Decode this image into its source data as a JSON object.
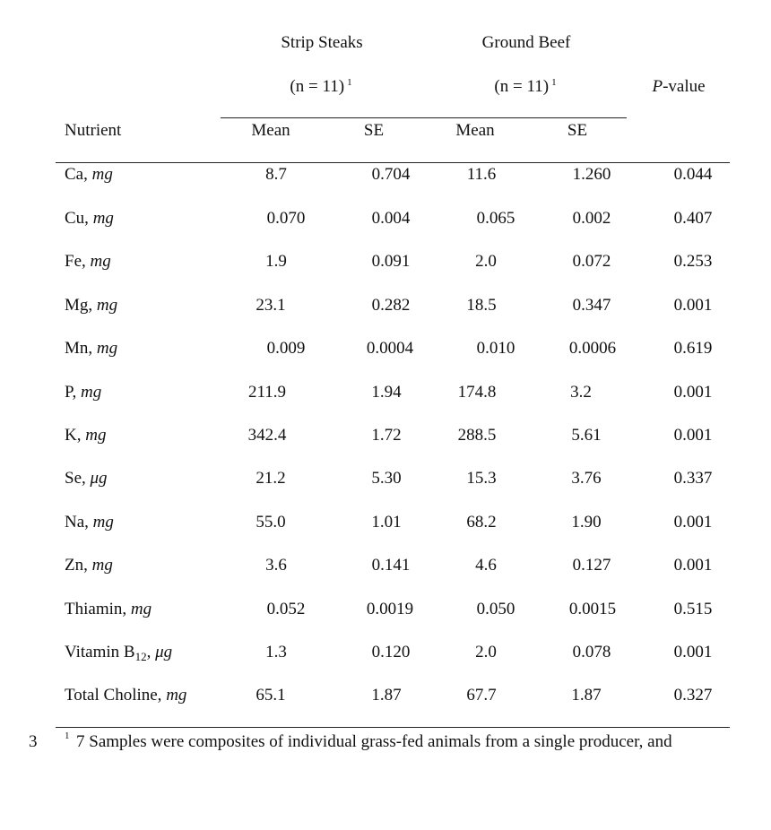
{
  "header": {
    "group1_title": "Strip Steaks",
    "group1_n": "(n = 11)",
    "group1_n_mark": "1",
    "group2_title": "Ground Beef",
    "group2_n": "(n = 11)",
    "group2_n_mark": "1",
    "pvalue_italic": "P",
    "pvalue_rest": "-value",
    "nutrient": "Nutrient",
    "mean1": "Mean",
    "se1": "SE",
    "mean2": "Mean",
    "se2": "SE"
  },
  "rows": [
    {
      "name": "Ca, ",
      "unit": "mg",
      "mean1": "8.7",
      "se1": "0.704",
      "mean2": "11.6",
      "se2": "1.260",
      "p": "0.044"
    },
    {
      "name": "Cu, ",
      "unit": "mg",
      "mean1": "0.070",
      "se1": "0.004",
      "mean2": "0.065",
      "se2": "0.002",
      "p": "0.407"
    },
    {
      "name": "Fe, ",
      "unit": "mg",
      "mean1": "1.9",
      "se1": "0.091",
      "mean2": "2.0",
      "se2": "0.072",
      "p": "0.253"
    },
    {
      "name": "Mg, ",
      "unit": "mg",
      "mean1": "23.1",
      "se1": "0.282",
      "mean2": "18.5",
      "se2": "0.347",
      "p": "0.001"
    },
    {
      "name": "Mn, ",
      "unit": "mg",
      "mean1": "0.009",
      "se1": "0.0004",
      "mean2": "0.010",
      "se2": "0.0006",
      "p": "0.619"
    },
    {
      "name": "P, ",
      "unit": "mg",
      "mean1": "211.9",
      "se1": "1.94",
      "mean2": "174.8",
      "se2": "3.2",
      "p": "0.001"
    },
    {
      "name": "K, ",
      "unit": "mg",
      "mean1": "342.4",
      "se1": "1.72",
      "mean2": "288.5",
      "se2": "5.61",
      "p": "0.001"
    },
    {
      "name": "Se, ",
      "unit": "μg",
      "mean1": "21.2",
      "se1": "5.30",
      "mean2": "15.3",
      "se2": "3.76",
      "p": "0.337"
    },
    {
      "name": "Na, ",
      "unit": "mg",
      "mean1": "55.0",
      "se1": "1.01",
      "mean2": "68.2",
      "se2": "1.90",
      "p": "0.001"
    },
    {
      "name": "Zn, ",
      "unit": "mg",
      "mean1": "3.6",
      "se1": "0.141",
      "mean2": "4.6",
      "se2": "0.127",
      "p": "0.001"
    },
    {
      "name": "Thiamin, ",
      "unit": "mg",
      "mean1": "0.052",
      "se1": "0.0019",
      "mean2": "0.050",
      "se2": "0.0015",
      "p": "0.515"
    },
    {
      "name": "Vitamin B",
      "sub": "12",
      "comma": ", ",
      "unit": "μg",
      "mean1": "1.3",
      "se1": "0.120",
      "mean2": "2.0",
      "se2": "0.078",
      "p": "0.001"
    },
    {
      "name": "Total Choline, ",
      "unit": "mg",
      "mean1": "65.1",
      "se1": "1.87",
      "mean2": "67.7",
      "se2": "1.87",
      "p": "0.327"
    }
  ],
  "footnote": {
    "line_number": "3",
    "mark": "1",
    "text": "7 Samples were composites of individual grass-fed animals from a single producer, and"
  }
}
